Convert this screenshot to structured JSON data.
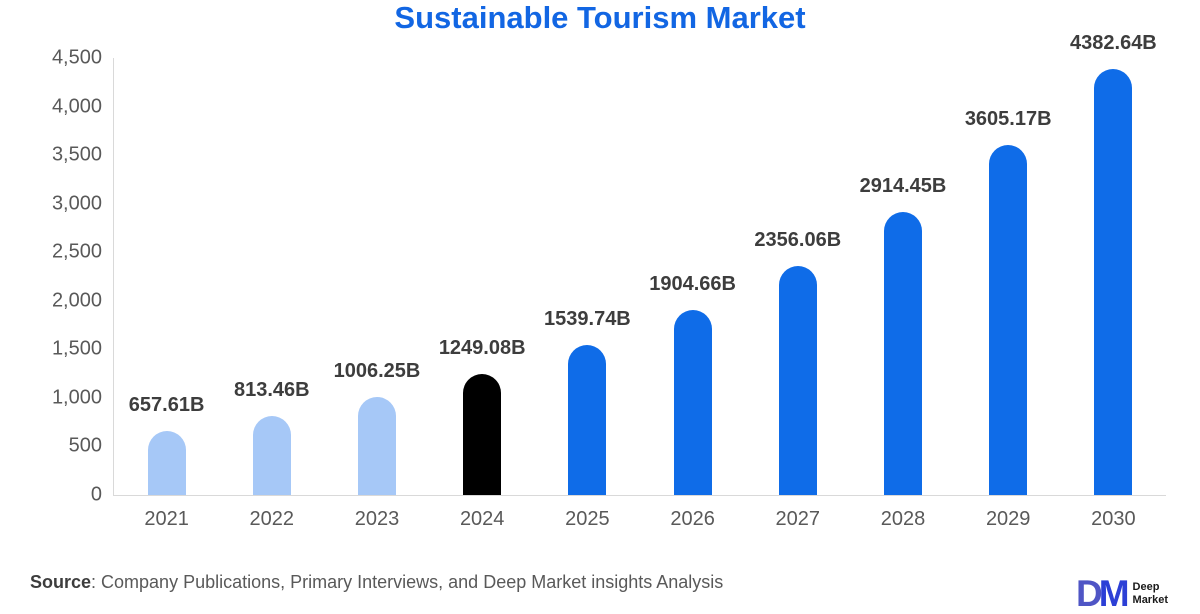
{
  "title": "Sustainable Tourism Market",
  "source": {
    "label": "Source",
    "text": ": Company Publications, Primary Interviews, and Deep Market insights Analysis"
  },
  "logo": {
    "monogram_d": "D",
    "monogram_m": "M",
    "name_line1": "Deep",
    "name_line2": "Market"
  },
  "chart_data": {
    "type": "bar",
    "title": "Sustainable Tourism Market",
    "categories": [
      "2021",
      "2022",
      "2023",
      "2024",
      "2025",
      "2026",
      "2027",
      "2028",
      "2029",
      "2030"
    ],
    "values": [
      657.61,
      813.46,
      1006.25,
      1249.08,
      1539.74,
      1904.66,
      2356.06,
      2914.45,
      3605.17,
      4382.64
    ],
    "data_labels": [
      "657.61B",
      "813.46B",
      "1006.25B",
      "1249.08B",
      "1539.74B",
      "1904.66B",
      "2356.06B",
      "2914.45B",
      "3605.17B",
      "4382.64B"
    ],
    "xlabel": "",
    "ylabel": "",
    "ylim": [
      0,
      4500
    ],
    "ytick_labels": [
      "4,500",
      "4,000",
      "3,500",
      "3,000",
      "2,500",
      "2,000",
      "1,500",
      "1,000",
      "500",
      "0"
    ],
    "ytick_values": [
      4500,
      4000,
      3500,
      3000,
      2500,
      2000,
      1500,
      1000,
      500,
      0
    ],
    "grid": false,
    "legend": "none",
    "bar_colors": {
      "historical": "#a6c8f7",
      "base_year": "#000000",
      "forecast": "#0f6ce8"
    },
    "bar_color_keys": [
      "historical",
      "historical",
      "historical",
      "base_year",
      "forecast",
      "forecast",
      "forecast",
      "forecast",
      "forecast",
      "forecast"
    ],
    "axis_line_color": "#d9d9d9",
    "title_color": "#1266e3"
  }
}
